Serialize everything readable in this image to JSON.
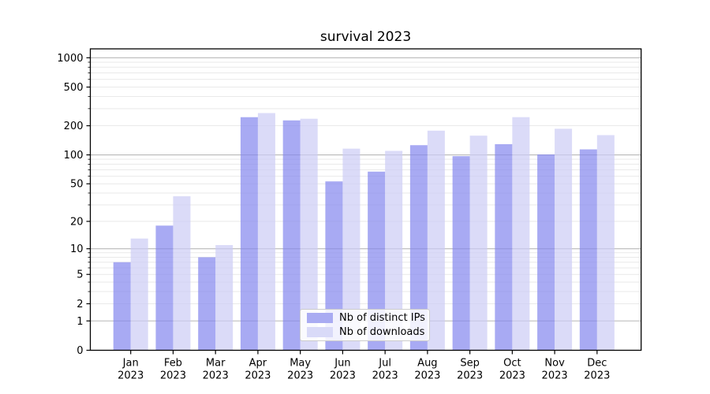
{
  "title": "survival 2023",
  "chart_data": {
    "type": "bar",
    "title": "survival 2023",
    "categories": [
      "Jan",
      "Feb",
      "Mar",
      "Apr",
      "May",
      "Jun",
      "Jul",
      "Aug",
      "Sep",
      "Oct",
      "Nov",
      "Dec"
    ],
    "category_year": "2023",
    "series": [
      {
        "name": "Nb of distinct IPs",
        "color": "#8386ee",
        "fill_rgba": "rgba(131,134,238,0.7)",
        "legend_swatch": "#a9abf2",
        "values": [
          7,
          18,
          8,
          245,
          227,
          53,
          67,
          126,
          97,
          129,
          101,
          114
        ]
      },
      {
        "name": "Nb of downloads",
        "color": "#ccccf5",
        "fill_rgba": "rgba(204,204,245,0.7)",
        "legend_swatch": "#d9daf8",
        "values": [
          13,
          37,
          11,
          270,
          236,
          116,
          110,
          178,
          158,
          245,
          186,
          160
        ]
      }
    ],
    "yscale": "log1p",
    "yticks": [
      0,
      1,
      2,
      5,
      10,
      20,
      50,
      100,
      200,
      500,
      1000
    ],
    "ytick_labels": [
      "0",
      "1",
      "2",
      "5",
      "10",
      "20",
      "50",
      "100",
      "200",
      "500",
      "1000"
    ],
    "minor_gridlines": [
      2,
      3,
      4,
      5,
      6,
      7,
      8,
      9,
      20,
      30,
      40,
      50,
      60,
      70,
      80,
      90,
      200,
      300,
      400,
      500,
      600,
      700,
      800,
      900
    ],
    "major_gridlines": [
      1,
      10,
      100,
      1000
    ],
    "ylim": [
      0,
      1234
    ],
    "grid": "both",
    "legend_position": "lower center",
    "colors": {
      "spine": "#000000",
      "major_grid": "#b8b8b8",
      "minor_grid": "#e9e9e9",
      "tick_text": "#000000",
      "background": "#ffffff"
    }
  },
  "legend": {
    "items": [
      {
        "label": "Nb of distinct IPs"
      },
      {
        "label": "Nb of downloads"
      }
    ]
  }
}
